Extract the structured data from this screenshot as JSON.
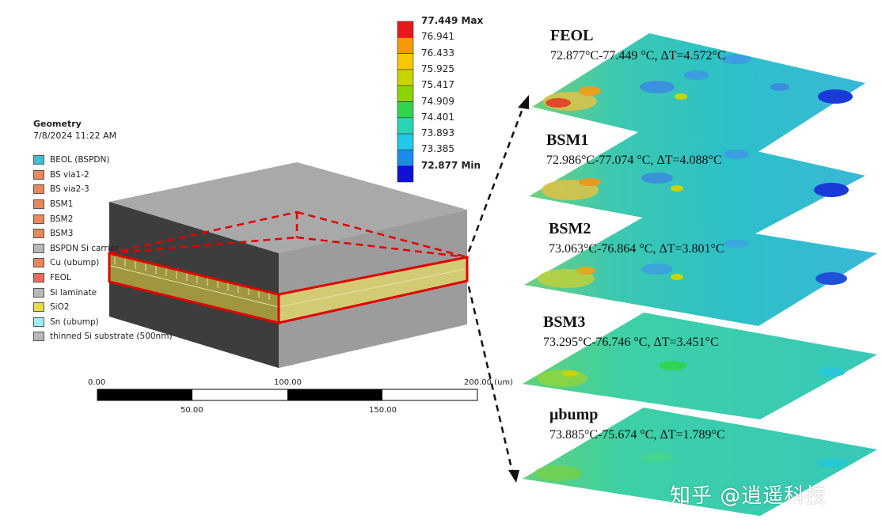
{
  "geometry": {
    "title": "Geometry",
    "date": "7/8/2024 11:22 AM",
    "legend": [
      {
        "label": "BEOL (BSPDN)",
        "color": "#3fbfd0"
      },
      {
        "label": "BS via1-2",
        "color": "#e8875a"
      },
      {
        "label": "BS via2-3",
        "color": "#e8875a"
      },
      {
        "label": "BSM1",
        "color": "#e8875a"
      },
      {
        "label": "BSM2",
        "color": "#e8875a"
      },
      {
        "label": "BSM3",
        "color": "#e8875a"
      },
      {
        "label": "BSPDN Si carrier",
        "color": "#b8b8b8"
      },
      {
        "label": "Cu (ubump)",
        "color": "#e8875a"
      },
      {
        "label": "FEOL",
        "color": "#f06a5a"
      },
      {
        "label": "Si laminate",
        "color": "#b8b8b8"
      },
      {
        "label": "SiO2",
        "color": "#e6dc4a"
      },
      {
        "label": "Sn (ubump)",
        "color": "#9feef5"
      },
      {
        "label": "thinned Si substrate (500nm)",
        "color": "#b8b8b8"
      }
    ]
  },
  "colorbar": {
    "max_label": "77.449 Max",
    "min_label": "72.877 Min",
    "ticks": [
      "76.941",
      "76.433",
      "75.925",
      "75.417",
      "74.909",
      "74.401",
      "73.893",
      "73.385"
    ],
    "colors": [
      "#e41a1c",
      "#f59b00",
      "#f5c800",
      "#c8d400",
      "#8cd400",
      "#2fd44a",
      "#28d4b4",
      "#22c8e8",
      "#1a8cf0",
      "#1010d8"
    ]
  },
  "scale": {
    "labels_top": [
      "0.00",
      "100.00",
      "200.00 (um)"
    ],
    "labels_bottom": [
      "50.00",
      "150.00"
    ]
  },
  "layers": [
    {
      "name": "FEOL",
      "range": "72.877°C-77.449 °C, ΔT=4.572°C"
    },
    {
      "name": "BSM1",
      "range": "72.986°C-77.074 °C, ΔT=4.088°C"
    },
    {
      "name": "BSM2",
      "range": "73.063°C-76.864 °C, ΔT=3.801°C"
    },
    {
      "name": "BSM3",
      "range": "73.295°C-76.746 °C, ΔT=3.451°C"
    },
    {
      "name": "μbump",
      "range": "73.885°C-75.674 °C, ΔT=1.789°C"
    }
  ],
  "watermark": "知乎 @逍遥科技"
}
